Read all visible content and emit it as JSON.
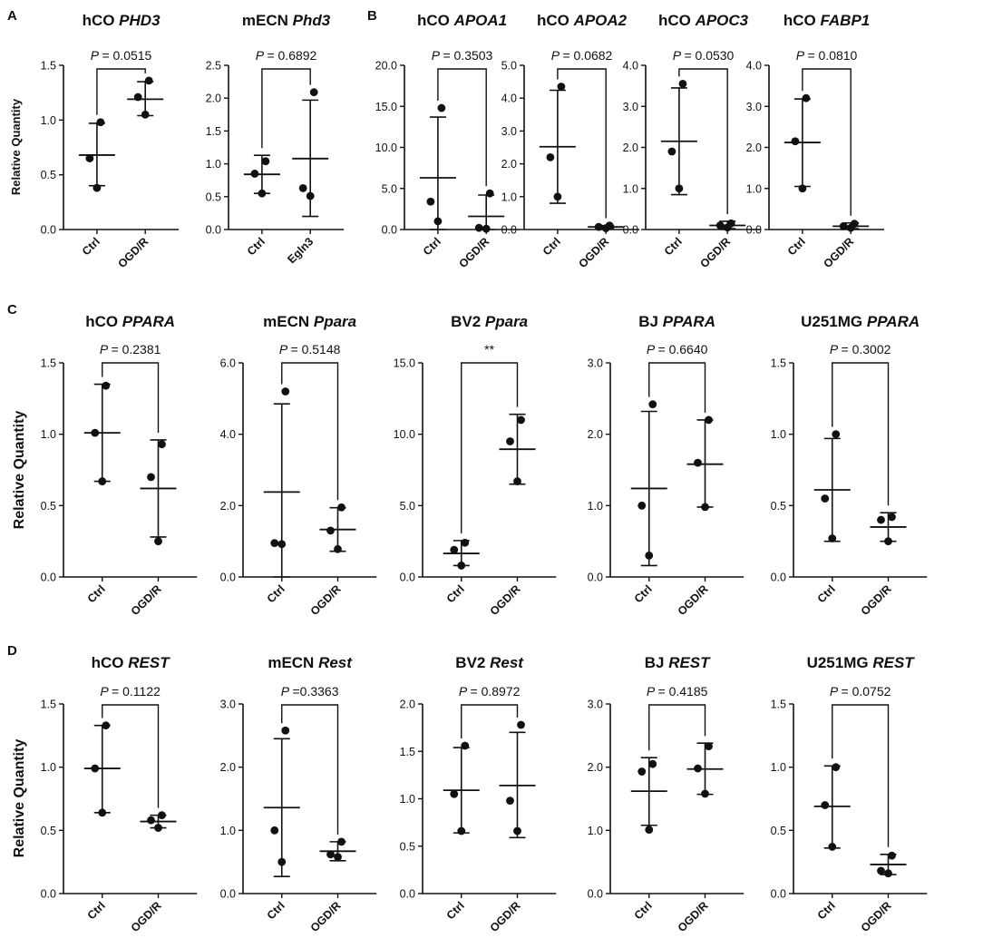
{
  "colors": {
    "ink": "#111111",
    "background": "#ffffff"
  },
  "y_axis_label": "Relative Quantity",
  "panel_labels": [
    "A",
    "B",
    "C",
    "D"
  ],
  "chart_data": [
    {
      "type": "scatter",
      "panel": "A",
      "title_prefix": "hCO",
      "gene": "PHD3",
      "ylim": [
        0,
        1.5
      ],
      "yticks": [
        "0.0",
        "0.5",
        "1.0",
        "1.5"
      ],
      "categories": [
        "Ctrl",
        "OGD/R"
      ],
      "p_label": "P",
      "p_value": "= 0.0515",
      "series": [
        {
          "name": "Ctrl",
          "points": [
            0.98,
            0.65,
            0.38
          ],
          "mean": 0.68,
          "sd_low": 0.4,
          "sd_high": 0.97
        },
        {
          "name": "OGD/R",
          "points": [
            1.36,
            1.21,
            1.05
          ],
          "mean": 1.19,
          "sd_low": 1.04,
          "sd_high": 1.35
        }
      ]
    },
    {
      "type": "scatter",
      "panel": "A",
      "title_prefix": "mECN",
      "gene": "Phd3",
      "ylim": [
        0,
        2.5
      ],
      "yticks": [
        "0.0",
        "0.5",
        "1.0",
        "1.5",
        "2.0",
        "2.5"
      ],
      "categories": [
        "Ctrl",
        "Egln3"
      ],
      "p_label": "P",
      "p_value": "= 0.6892",
      "series": [
        {
          "name": "Ctrl",
          "points": [
            1.04,
            0.85,
            0.55
          ],
          "mean": 0.84,
          "sd_low": 0.55,
          "sd_high": 1.13
        },
        {
          "name": "Egln3",
          "points": [
            2.09,
            0.63,
            0.51
          ],
          "mean": 1.08,
          "sd_low": 0.2,
          "sd_high": 1.97
        }
      ]
    },
    {
      "type": "scatter",
      "panel": "B",
      "title_prefix": "hCO",
      "gene": "APOA1",
      "ylim": [
        0,
        20
      ],
      "yticks": [
        "0.0",
        "5.0",
        "10.0",
        "15.0",
        "20.0"
      ],
      "categories": [
        "Ctrl",
        "OGD/R"
      ],
      "p_label": "P",
      "p_value": "= 0.3503",
      "series": [
        {
          "name": "Ctrl",
          "points": [
            14.8,
            3.4,
            1.0
          ],
          "mean": 6.3,
          "sd_low": 0,
          "sd_high": 13.7
        },
        {
          "name": "OGD/R",
          "points": [
            4.4,
            0.2,
            0.1
          ],
          "mean": 1.6,
          "sd_low": 0,
          "sd_high": 4.2
        }
      ]
    },
    {
      "type": "scatter",
      "panel": "B",
      "title_prefix": "hCO",
      "gene": "APOA2",
      "ylim": [
        0,
        5
      ],
      "yticks": [
        "0.0",
        "1.0",
        "2.0",
        "3.0",
        "4.0",
        "5.0"
      ],
      "categories": [
        "Ctrl",
        "OGD/R"
      ],
      "p_label": "P",
      "p_value": "= 0.0682",
      "series": [
        {
          "name": "Ctrl",
          "points": [
            4.35,
            2.2,
            1.0
          ],
          "mean": 2.52,
          "sd_low": 0.8,
          "sd_high": 4.24
        },
        {
          "name": "OGD/R",
          "points": [
            0.12,
            0.08,
            0.04
          ],
          "mean": 0.08,
          "sd_low": 0.04,
          "sd_high": 0.12
        }
      ]
    },
    {
      "type": "scatter",
      "panel": "B",
      "title_prefix": "hCO",
      "gene": "APOC3",
      "ylim": [
        0,
        4
      ],
      "yticks": [
        "0.0",
        "1.0",
        "2.0",
        "3.0",
        "4.0"
      ],
      "categories": [
        "Ctrl",
        "OGD/R"
      ],
      "p_label": "P",
      "p_value": "= 0.0530",
      "series": [
        {
          "name": "Ctrl",
          "points": [
            3.55,
            1.9,
            1.0
          ],
          "mean": 2.15,
          "sd_low": 0.85,
          "sd_high": 3.45
        },
        {
          "name": "OGD/R",
          "points": [
            0.15,
            0.1,
            0.05
          ],
          "mean": 0.1,
          "sd_low": 0.02,
          "sd_high": 0.2
        }
      ]
    },
    {
      "type": "scatter",
      "panel": "B",
      "title_prefix": "hCO",
      "gene": "FABP1",
      "ylim": [
        0,
        4
      ],
      "yticks": [
        "0.0",
        "1.0",
        "2.0",
        "3.0",
        "4.0"
      ],
      "categories": [
        "Ctrl",
        "OGD/R"
      ],
      "p_label": "P",
      "p_value": "= 0.0810",
      "series": [
        {
          "name": "Ctrl",
          "points": [
            3.2,
            2.15,
            1.0
          ],
          "mean": 2.12,
          "sd_low": 1.05,
          "sd_high": 3.18
        },
        {
          "name": "OGD/R",
          "points": [
            0.14,
            0.08,
            0.04
          ],
          "mean": 0.08,
          "sd_low": 0.02,
          "sd_high": 0.16
        }
      ]
    },
    {
      "type": "scatter",
      "panel": "C",
      "title_prefix": "hCO",
      "gene": "PPARA",
      "ylim": [
        0,
        1.5
      ],
      "yticks": [
        "0.0",
        "0.5",
        "1.0",
        "1.5"
      ],
      "categories": [
        "Ctrl",
        "OGD/R"
      ],
      "p_label": "P",
      "p_value": "= 0.2381",
      "series": [
        {
          "name": "Ctrl",
          "points": [
            1.34,
            1.01,
            0.67
          ],
          "mean": 1.01,
          "sd_low": 0.67,
          "sd_high": 1.35
        },
        {
          "name": "OGD/R",
          "points": [
            0.93,
            0.7,
            0.25
          ],
          "mean": 0.62,
          "sd_low": 0.28,
          "sd_high": 0.96
        }
      ]
    },
    {
      "type": "scatter",
      "panel": "C",
      "title_prefix": "mECN",
      "gene": "Ppara",
      "ylim": [
        0,
        6
      ],
      "yticks": [
        "0.0",
        "2.0",
        "4.0",
        "6.0"
      ],
      "categories": [
        "Ctrl",
        "OGD/R"
      ],
      "p_label": "P",
      "p_value": "= 0.5148",
      "series": [
        {
          "name": "Ctrl",
          "points": [
            5.2,
            0.95,
            0.92
          ],
          "mean": 2.38,
          "sd_low": 0,
          "sd_high": 4.85
        },
        {
          "name": "OGD/R",
          "points": [
            1.95,
            1.3,
            0.78
          ],
          "mean": 1.33,
          "sd_low": 0.72,
          "sd_high": 1.94
        }
      ]
    },
    {
      "type": "scatter",
      "panel": "C",
      "title_prefix": "BV2",
      "gene": "Ppara",
      "ylim": [
        0,
        15
      ],
      "yticks": [
        "0.0",
        "5.0",
        "10.0",
        "15.0"
      ],
      "categories": [
        "Ctrl",
        "OGD/R"
      ],
      "p_label": "",
      "p_value": "**",
      "series": [
        {
          "name": "Ctrl",
          "points": [
            2.4,
            1.9,
            0.8
          ],
          "mean": 1.65,
          "sd_low": 0.8,
          "sd_high": 2.55
        },
        {
          "name": "OGD/R",
          "points": [
            11.0,
            9.5,
            6.7
          ],
          "mean": 8.95,
          "sd_low": 6.5,
          "sd_high": 11.4
        }
      ]
    },
    {
      "type": "scatter",
      "panel": "C",
      "title_prefix": "BJ",
      "gene": "PPARA",
      "ylim": [
        0,
        3
      ],
      "yticks": [
        "0.0",
        "1.0",
        "2.0",
        "3.0"
      ],
      "categories": [
        "Ctrl",
        "OGD/R"
      ],
      "p_label": "P",
      "p_value": "= 0.6640",
      "series": [
        {
          "name": "Ctrl",
          "points": [
            2.42,
            1.0,
            0.3
          ],
          "mean": 1.24,
          "sd_low": 0.16,
          "sd_high": 2.32
        },
        {
          "name": "OGD/R",
          "points": [
            2.2,
            1.6,
            0.98
          ],
          "mean": 1.58,
          "sd_low": 0.98,
          "sd_high": 2.2
        }
      ]
    },
    {
      "type": "scatter",
      "panel": "C",
      "title_prefix": "U251MG",
      "gene": "PPARA",
      "ylim": [
        0,
        1.5
      ],
      "yticks": [
        "0.0",
        "0.5",
        "1.0",
        "1.5"
      ],
      "categories": [
        "Ctrl",
        "OGD/R"
      ],
      "p_label": "P",
      "p_value": "= 0.3002",
      "series": [
        {
          "name": "Ctrl",
          "points": [
            1.0,
            0.55,
            0.27
          ],
          "mean": 0.61,
          "sd_low": 0.25,
          "sd_high": 0.97
        },
        {
          "name": "OGD/R",
          "points": [
            0.42,
            0.4,
            0.25
          ],
          "mean": 0.35,
          "sd_low": 0.25,
          "sd_high": 0.45
        }
      ]
    },
    {
      "type": "scatter",
      "panel": "D",
      "title_prefix": "hCO",
      "gene": "REST",
      "ylim": [
        0,
        1.5
      ],
      "yticks": [
        "0.0",
        "0.5",
        "1.0",
        "1.5"
      ],
      "categories": [
        "Ctrl",
        "OGD/R"
      ],
      "p_label": "P",
      "p_value": "= 0.1122",
      "series": [
        {
          "name": "Ctrl",
          "points": [
            1.33,
            0.99,
            0.64
          ],
          "mean": 0.99,
          "sd_low": 0.64,
          "sd_high": 1.33
        },
        {
          "name": "OGD/R",
          "points": [
            0.62,
            0.58,
            0.52
          ],
          "mean": 0.57,
          "sd_low": 0.52,
          "sd_high": 0.62
        }
      ]
    },
    {
      "type": "scatter",
      "panel": "D",
      "title_prefix": "mECN",
      "gene": "Rest",
      "ylim": [
        0,
        3
      ],
      "yticks": [
        "0.0",
        "1.0",
        "2.0",
        "3.0"
      ],
      "categories": [
        "Ctrl",
        "OGD/R"
      ],
      "p_label": "P",
      "p_value": "=0.3363",
      "series": [
        {
          "name": "Ctrl",
          "points": [
            2.58,
            1.0,
            0.5
          ],
          "mean": 1.36,
          "sd_low": 0.27,
          "sd_high": 2.45
        },
        {
          "name": "OGD/R",
          "points": [
            0.82,
            0.62,
            0.58
          ],
          "mean": 0.67,
          "sd_low": 0.52,
          "sd_high": 0.82
        }
      ]
    },
    {
      "type": "scatter",
      "panel": "D",
      "title_prefix": "BV2",
      "gene": "Rest",
      "ylim": [
        0,
        2
      ],
      "yticks": [
        "0.0",
        "0.5",
        "1.0",
        "1.5",
        "2.0"
      ],
      "categories": [
        "Ctrl",
        "OGD/R"
      ],
      "p_label": "P",
      "p_value": "= 0.8972",
      "series": [
        {
          "name": "Ctrl",
          "points": [
            1.56,
            1.05,
            0.66
          ],
          "mean": 1.09,
          "sd_low": 0.64,
          "sd_high": 1.54
        },
        {
          "name": "OGD/R",
          "points": [
            1.78,
            0.98,
            0.66
          ],
          "mean": 1.14,
          "sd_low": 0.59,
          "sd_high": 1.7
        }
      ]
    },
    {
      "type": "scatter",
      "panel": "D",
      "title_prefix": "BJ",
      "gene": "REST",
      "ylim": [
        0,
        3
      ],
      "yticks": [
        "0.0",
        "1.0",
        "2.0",
        "3.0"
      ],
      "categories": [
        "Ctrl",
        "OGD/R"
      ],
      "p_label": "P",
      "p_value": "= 0.4185",
      "series": [
        {
          "name": "Ctrl",
          "points": [
            2.05,
            1.93,
            1.01
          ],
          "mean": 1.62,
          "sd_low": 1.08,
          "sd_high": 2.15
        },
        {
          "name": "OGD/R",
          "points": [
            2.33,
            1.98,
            1.58
          ],
          "mean": 1.97,
          "sd_low": 1.57,
          "sd_high": 2.38
        }
      ]
    },
    {
      "type": "scatter",
      "panel": "D",
      "title_prefix": "U251MG",
      "gene": "REST",
      "ylim": [
        0,
        1.5
      ],
      "yticks": [
        "0.0",
        "0.5",
        "1.0",
        "1.5"
      ],
      "categories": [
        "Ctrl",
        "OGD/R"
      ],
      "p_label": "P",
      "p_value": "= 0.0752",
      "series": [
        {
          "name": "Ctrl",
          "points": [
            1.0,
            0.7,
            0.37
          ],
          "mean": 0.69,
          "sd_low": 0.36,
          "sd_high": 1.01
        },
        {
          "name": "OGD/R",
          "points": [
            0.3,
            0.18,
            0.16
          ],
          "mean": 0.23,
          "sd_low": 0.15,
          "sd_high": 0.31
        }
      ]
    }
  ]
}
